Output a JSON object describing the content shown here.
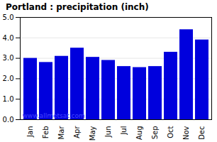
{
  "chart_data": {
    "type": "bar",
    "title": "Portland : precipitation (inch)",
    "categories": [
      "Jan",
      "Feb",
      "Mar",
      "Apr",
      "May",
      "Jun",
      "Jul",
      "Aug",
      "Sep",
      "Oct",
      "Nov",
      "Dec"
    ],
    "values": [
      3.0,
      2.8,
      3.1,
      3.5,
      3.05,
      2.9,
      2.6,
      2.55,
      2.6,
      3.3,
      4.4,
      3.9
    ],
    "color": "#0000dd",
    "ylim": [
      0,
      5
    ],
    "yticks": [
      0,
      1,
      2,
      3,
      4,
      5
    ],
    "grid": true,
    "annotations": [
      {
        "text": "www.allmetsat.com",
        "color": "#4444ff"
      }
    ]
  }
}
